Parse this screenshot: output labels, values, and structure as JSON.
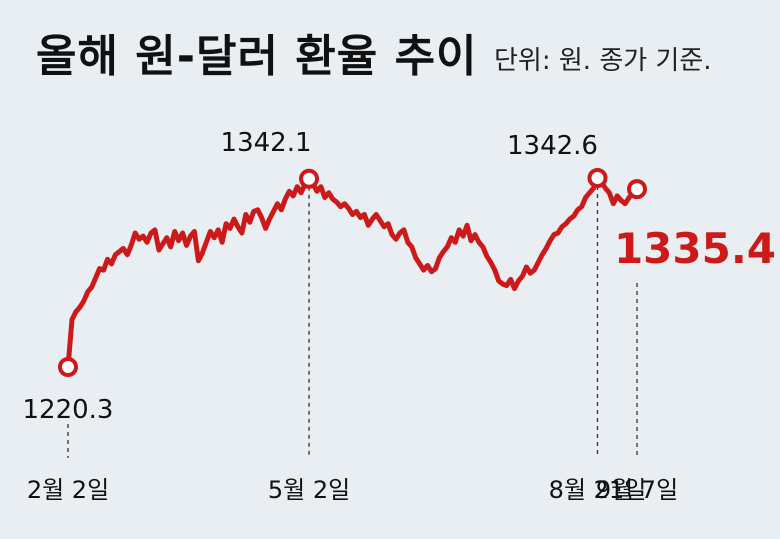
{
  "header": {
    "title": "올해 원-달러 환율 추이",
    "unit": "단위: 원. 종가 기준."
  },
  "colors": {
    "line": "#cc1a1a",
    "text": "#111111",
    "background": "#e9eef3"
  },
  "chart_data": {
    "type": "line",
    "title": "올해 원-달러 환율 추이",
    "subtitle": "단위: 원. 종가 기준.",
    "x_tick_labels": [
      "2월 2일",
      "5월 2일",
      "8월 21일",
      "9월 7일"
    ],
    "grid": false,
    "series": [
      {
        "values": [
          1220.3,
          1251,
          1256,
          1259,
          1263,
          1269,
          1272,
          1278,
          1284,
          1283,
          1290,
          1287,
          1293,
          1295,
          1297,
          1293,
          1299,
          1307,
          1303,
          1305,
          1301,
          1307,
          1309,
          1296,
          1300,
          1304,
          1298,
          1308,
          1302,
          1307,
          1299,
          1305,
          1308,
          1289,
          1294,
          1301,
          1308,
          1304,
          1309,
          1301,
          1313,
          1310,
          1316,
          1311,
          1307,
          1319,
          1314,
          1321,
          1322,
          1317,
          1310,
          1316,
          1321,
          1326,
          1322,
          1329,
          1334,
          1331,
          1337,
          1333,
          1339,
          1342.1,
          1339,
          1334,
          1337,
          1330,
          1333,
          1329,
          1327,
          1324,
          1326,
          1323,
          1319,
          1321,
          1317,
          1319,
          1312,
          1316,
          1319,
          1315,
          1311,
          1313,
          1306,
          1303,
          1307,
          1309,
          1301,
          1298,
          1291,
          1287,
          1283,
          1286,
          1282,
          1284,
          1291,
          1295,
          1298,
          1304,
          1301,
          1309,
          1305,
          1312,
          1302,
          1306,
          1301,
          1298,
          1292,
          1288,
          1283,
          1276,
          1274,
          1273,
          1277,
          1271,
          1276,
          1279,
          1285,
          1281,
          1283,
          1288,
          1293,
          1297,
          1302,
          1306,
          1307,
          1311,
          1313,
          1316,
          1318,
          1322,
          1324,
          1330,
          1333,
          1336,
          1342.6,
          1340,
          1336,
          1333,
          1326,
          1331,
          1328,
          1326,
          1330,
          1333,
          1335.4
        ],
        "annotations": [
          {
            "label": "1220.3",
            "value": 1220.3
          },
          {
            "label": "1342.1",
            "value": 1342.1
          },
          {
            "label": "1342.6",
            "value": 1342.6
          },
          {
            "label": "1335.4",
            "value": 1335.4
          }
        ]
      }
    ]
  }
}
